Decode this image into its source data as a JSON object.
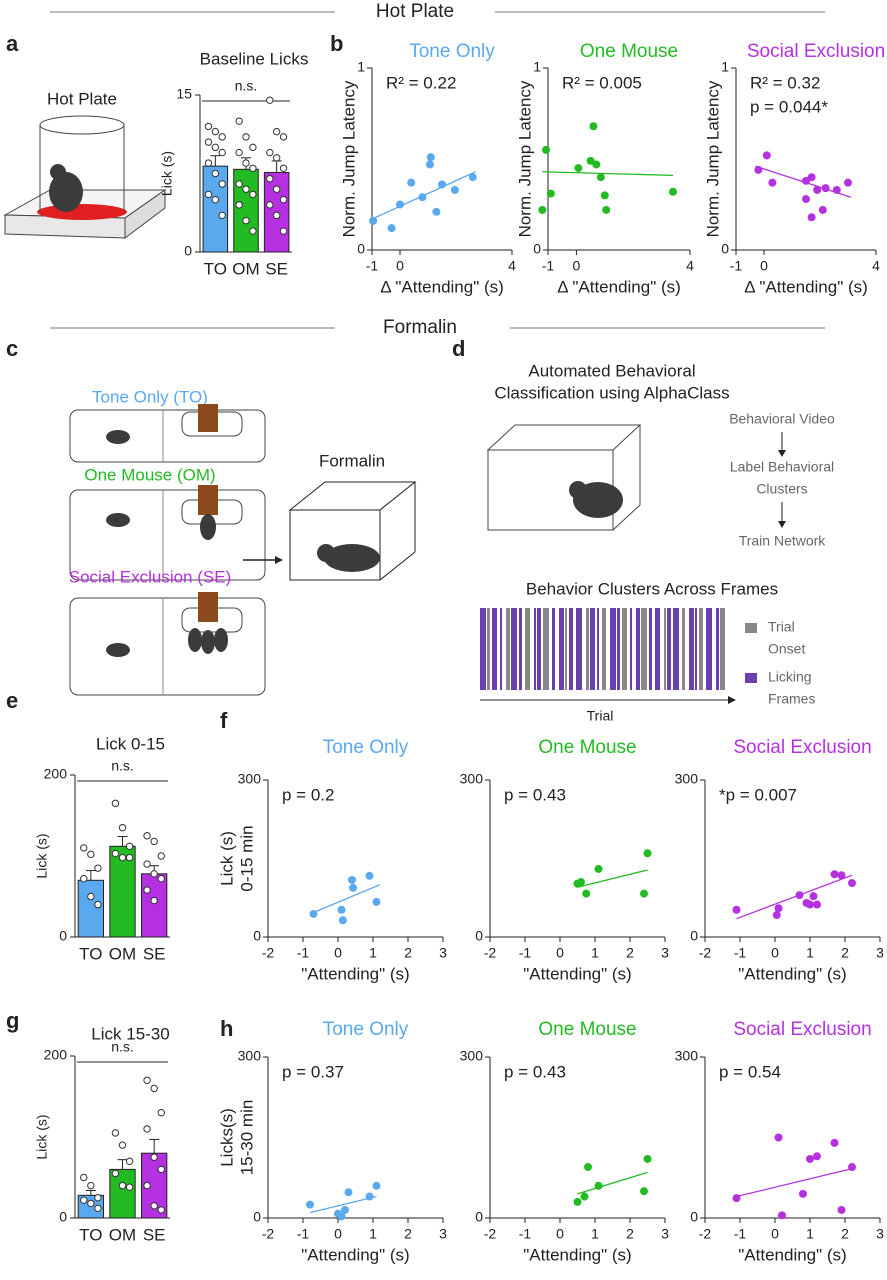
{
  "headers": {
    "hot_plate": "Hot Plate",
    "formalin": "Formalin"
  },
  "panel_letters": [
    "a",
    "b",
    "c",
    "d",
    "e",
    "f",
    "g",
    "h"
  ],
  "diagram_a": {
    "label": "Hot Plate"
  },
  "diagram_c": {
    "conditions": [
      "Tone Only (TO)",
      "One Mouse (OM)",
      "Social Exclusion (SE)"
    ],
    "formalin": "Formalin"
  },
  "diagram_d": {
    "title": [
      "Automated Behavioral",
      "Classification using AlphaClass"
    ],
    "steps": [
      "Behavioral Video",
      "Label Behavioral",
      "Clusters",
      "Train Network"
    ],
    "raster_title": "Behavior Clusters Across Frames",
    "legend": [
      "Trial",
      "Onset",
      "Licking",
      "Frames"
    ],
    "axis": "Trial"
  },
  "chart_data": [
    {
      "type": "bar",
      "title": "Baseline Licks",
      "categories": [
        "TO",
        "OM",
        "SE"
      ],
      "colors": [
        "#5aa9ef",
        "#22bb22",
        "#b530e0"
      ],
      "values": [
        8.2,
        7.9,
        7.6
      ],
      "errors": [
        1.0,
        1.1,
        1.1
      ],
      "points": [
        [
          12,
          11.5,
          11,
          10.5,
          10,
          9.5,
          8.5,
          7.5,
          6.5,
          5.5,
          5,
          3.5
        ],
        [
          12.5,
          11,
          10,
          9.5,
          8.5,
          8,
          6.5,
          6,
          5.5,
          4.5,
          3,
          2
        ],
        [
          14.5,
          11.5,
          11,
          9.5,
          9,
          8,
          7,
          6,
          5,
          4.5,
          3.5,
          2
        ]
      ],
      "ylim": [
        0,
        15
      ],
      "yticks": [
        0,
        15
      ],
      "ylabel": "Lick (s)",
      "annotation": "n.s."
    },
    {
      "type": "scatter",
      "title": "Tone Only",
      "color": "#5aa9ef",
      "x": [
        -0.96,
        0.0,
        -0.3,
        0.4,
        0.8,
        1.07,
        1.1,
        1.3,
        1.5,
        1.96,
        2.6
      ],
      "y": [
        0.16,
        0.25,
        0.12,
        0.37,
        0.29,
        0.47,
        0.51,
        0.21,
        0.36,
        0.33,
        0.4
      ],
      "fit": {
        "x": [
          -1,
          2.7
        ],
        "y": [
          0.17,
          0.43
        ]
      },
      "xlim": [
        -1,
        4
      ],
      "xticks": [
        -1,
        0,
        4
      ],
      "ylim": [
        0,
        1
      ],
      "yticks": [
        0,
        1
      ],
      "xlabel": "Δ \"Attending\" (s)",
      "ylabel": "Norm. Jump Latency",
      "annotations": [
        "R² = 0.22"
      ]
    },
    {
      "type": "scatter",
      "title": "One Mouse",
      "color": "#22bb22",
      "x": [
        -1.2,
        -1.07,
        -0.9,
        0.07,
        0.5,
        0.6,
        0.7,
        0.86,
        1.0,
        1.05,
        3.4
      ],
      "y": [
        0.22,
        0.55,
        0.31,
        0.45,
        0.49,
        0.68,
        0.47,
        0.4,
        0.3,
        0.22,
        0.32
      ],
      "fit": {
        "x": [
          -1.2,
          3.4
        ],
        "y": [
          0.43,
          0.41
        ]
      },
      "xlim": [
        -1,
        4
      ],
      "xticks": [
        -1,
        0,
        4
      ],
      "ylim": [
        0,
        1
      ],
      "yticks": [
        0,
        1
      ],
      "xlabel": "Δ \"Attending\" (s)",
      "ylabel": "Norm. Jump Latency",
      "annotations": [
        "R² = 0.005"
      ]
    },
    {
      "type": "scatter",
      "title": "Social Exclusion",
      "color": "#b530e0",
      "x": [
        -0.2,
        0.1,
        0.3,
        1.5,
        1.7,
        1.9,
        1.5,
        2.1,
        2.2,
        2.6,
        3.0,
        1.7
      ],
      "y": [
        0.44,
        0.52,
        0.37,
        0.38,
        0.4,
        0.33,
        0.28,
        0.22,
        0.34,
        0.33,
        0.37,
        0.18
      ],
      "fit": {
        "x": [
          -0.3,
          3.1
        ],
        "y": [
          0.46,
          0.29
        ]
      },
      "xlim": [
        -1,
        4
      ],
      "xticks": [
        -1,
        0,
        4
      ],
      "ylim": [
        0,
        1
      ],
      "yticks": [
        0,
        1
      ],
      "xlabel": "Δ \"Attending\" (s)",
      "ylabel": "Norm. Jump Latency",
      "annotations": [
        "R² = 0.32",
        "p = 0.044*"
      ]
    },
    {
      "type": "bar",
      "title": "Lick 0-15",
      "categories": [
        "TO",
        "OM",
        "SE"
      ],
      "colors": [
        "#5aa9ef",
        "#22bb22",
        "#b530e0"
      ],
      "values": [
        70,
        112,
        78
      ],
      "errors": [
        12,
        12,
        10
      ],
      "points": [
        [
          110,
          102,
          85,
          72,
          50,
          40
        ],
        [
          165,
          135,
          112,
          103,
          98,
          98
        ],
        [
          125,
          118,
          100,
          90,
          78,
          72,
          58,
          45
        ]
      ],
      "ylim": [
        0,
        200
      ],
      "yticks": [
        0,
        200
      ],
      "ylabel": "Lick (s)",
      "annotation": "n.s."
    },
    {
      "type": "scatter",
      "title": "Tone Only",
      "color": "#5aa9ef",
      "x": [
        -0.7,
        0.1,
        0.14,
        0.4,
        0.43,
        0.9,
        1.1
      ],
      "y": [
        44,
        52,
        32,
        109,
        94,
        117,
        67
      ],
      "fit": {
        "x": [
          -0.8,
          1.2
        ],
        "y": [
          44,
          100
        ]
      },
      "xlim": [
        -2,
        3
      ],
      "xticks": [
        -2,
        -1,
        0,
        1,
        2,
        3
      ],
      "ylim": [
        0,
        300
      ],
      "yticks": [
        0,
        300
      ],
      "xlabel": "\"Attending\" (s)",
      "ylabel": [
        "Lick (s)",
        "0-15 min"
      ],
      "annotations": [
        "p = 0.2"
      ]
    },
    {
      "type": "scatter",
      "title": "One Mouse",
      "color": "#22bb22",
      "x": [
        0.5,
        0.6,
        0.75,
        1.1,
        2.4,
        2.5
      ],
      "y": [
        102,
        105,
        83,
        130,
        83,
        160
      ],
      "fit": {
        "x": [
          0.5,
          2.5
        ],
        "y": [
          95,
          128
        ]
      },
      "xlim": [
        -2,
        3
      ],
      "xticks": [
        -2,
        -1,
        0,
        1,
        2,
        3
      ],
      "ylim": [
        0,
        300
      ],
      "yticks": [
        0,
        300
      ],
      "xlabel": "\"Attending\" (s)",
      "annotations": [
        "p = 0.43"
      ]
    },
    {
      "type": "scatter",
      "title": "Social Exclusion",
      "color": "#b530e0",
      "x": [
        -1.1,
        0.05,
        0.1,
        0.7,
        0.9,
        1.0,
        1.1,
        1.2,
        1.7,
        1.9,
        2.2
      ],
      "y": [
        52,
        42,
        55,
        80,
        65,
        62,
        78,
        62,
        120,
        118,
        103
      ],
      "fit": {
        "x": [
          -1.1,
          2.2
        ],
        "y": [
          35,
          118
        ]
      },
      "xlim": [
        -2,
        3
      ],
      "xticks": [
        -2,
        -1,
        0,
        1,
        2,
        3
      ],
      "ylim": [
        0,
        300
      ],
      "yticks": [
        0,
        300
      ],
      "xlabel": "\"Attending\" (s)",
      "annotations": [
        "*p = 0.007"
      ]
    },
    {
      "type": "bar",
      "title": "Lick 15-30",
      "categories": [
        "TO",
        "OM",
        "SE"
      ],
      "colors": [
        "#5aa9ef",
        "#22bb22",
        "#b530e0"
      ],
      "values": [
        28,
        60,
        80
      ],
      "errors": [
        6,
        12,
        17
      ],
      "points": [
        [
          50,
          40,
          25,
          22,
          18,
          12
        ],
        [
          105,
          90,
          70,
          55,
          40,
          38
        ],
        [
          170,
          160,
          130,
          110,
          75,
          60,
          40,
          15,
          10
        ]
      ],
      "ylim": [
        0,
        200
      ],
      "yticks": [
        0,
        200
      ],
      "ylabel": "Lick (s)",
      "annotation": "n.s."
    },
    {
      "type": "scatter",
      "title": "Tone Only",
      "color": "#5aa9ef",
      "x": [
        -0.8,
        0.0,
        0.1,
        0.2,
        0.3,
        0.9,
        1.1
      ],
      "y": [
        25,
        8,
        3,
        15,
        48,
        40,
        60
      ],
      "fit": {
        "x": [
          -0.8,
          1.1
        ],
        "y": [
          10,
          40
        ]
      },
      "xlim": [
        -2,
        3
      ],
      "xticks": [
        -2,
        -1,
        0,
        1,
        2,
        3
      ],
      "ylim": [
        0,
        300
      ],
      "yticks": [
        0,
        300
      ],
      "xlabel": "\"Attending\" (s)",
      "ylabel": [
        "Licks(s)",
        "15-30 min"
      ],
      "annotations": [
        "p = 0.37"
      ]
    },
    {
      "type": "scatter",
      "title": "One Mouse",
      "color": "#22bb22",
      "x": [
        0.5,
        0.7,
        0.8,
        1.1,
        2.4,
        2.5
      ],
      "y": [
        30,
        40,
        95,
        60,
        50,
        110
      ],
      "fit": {
        "x": [
          0.5,
          2.5
        ],
        "y": [
          45,
          85
        ]
      },
      "xlim": [
        -2,
        3
      ],
      "xticks": [
        -2,
        -1,
        0,
        1,
        2,
        3
      ],
      "ylim": [
        0,
        300
      ],
      "yticks": [
        0,
        300
      ],
      "xlabel": "\"Attending\" (s)",
      "annotations": [
        "p = 0.43"
      ]
    },
    {
      "type": "scatter",
      "title": "Social Exclusion",
      "color": "#b530e0",
      "x": [
        -1.1,
        0.1,
        0.2,
        0.8,
        1.0,
        1.2,
        1.7,
        1.9,
        2.2
      ],
      "y": [
        37,
        150,
        5,
        45,
        110,
        115,
        140,
        15,
        95
      ],
      "fit": {
        "x": [
          -1.1,
          2.2
        ],
        "y": [
          40,
          92
        ]
      },
      "xlim": [
        -2,
        3
      ],
      "xticks": [
        -2,
        -1,
        0,
        1,
        2,
        3
      ],
      "ylim": [
        0,
        300
      ],
      "yticks": [
        0,
        300
      ],
      "xlabel": "\"Attending\" (s)",
      "annotations": [
        "p = 0.54"
      ]
    }
  ]
}
